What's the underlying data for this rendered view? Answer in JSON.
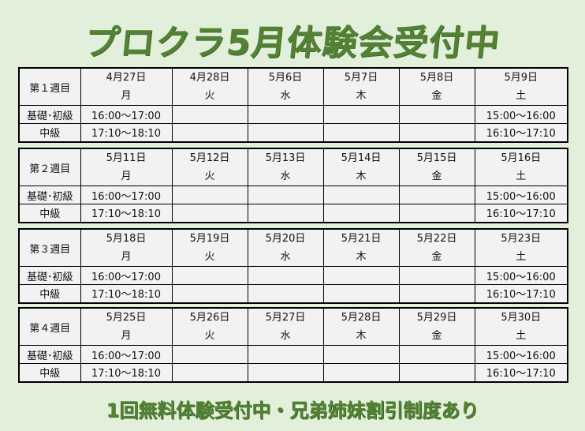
{
  "title": "プロクラ5月体験会受付中",
  "footer": "1回無料体験受付中・兄弟姉妹割引制度あり",
  "colors": {
    "background": "#e2efda",
    "accent": "#548235",
    "cell": "#f2f2f2"
  },
  "row_labels": {
    "basic": "基礎･初級",
    "intermediate": "中級"
  },
  "weekdays": [
    "月",
    "火",
    "水",
    "木",
    "金",
    "土"
  ],
  "weeks": [
    {
      "label": "第１週目",
      "dates": [
        "4月27日",
        "4月28日",
        "5月6日",
        "5月7日",
        "5月8日",
        "5月9日"
      ],
      "basic": [
        "16:00～17:00",
        "",
        "",
        "",
        "",
        "15:00～16:00"
      ],
      "intermediate": [
        "17:10～18:10",
        "",
        "",
        "",
        "",
        "16:10～17:10"
      ]
    },
    {
      "label": "第２週目",
      "dates": [
        "5月11日",
        "5月12日",
        "5月13日",
        "5月14日",
        "5月15日",
        "5月16日"
      ],
      "basic": [
        "16:00～17:00",
        "",
        "",
        "",
        "",
        "15:00～16:00"
      ],
      "intermediate": [
        "17:10～18:10",
        "",
        "",
        "",
        "",
        "16:10～17:10"
      ]
    },
    {
      "label": "第３週目",
      "dates": [
        "5月18日",
        "5月19日",
        "5月20日",
        "5月21日",
        "5月22日",
        "5月23日"
      ],
      "basic": [
        "16:00～17:00",
        "",
        "",
        "",
        "",
        "15:00～16:00"
      ],
      "intermediate": [
        "17:10～18:10",
        "",
        "",
        "",
        "",
        "16:10～17:10"
      ]
    },
    {
      "label": "第４週目",
      "dates": [
        "5月25日",
        "5月26日",
        "5月27日",
        "5月28日",
        "5月29日",
        "5月30日"
      ],
      "basic": [
        "16:00～17:00",
        "",
        "",
        "",
        "",
        "15:00～16:00"
      ],
      "intermediate": [
        "17:10～18:10",
        "",
        "",
        "",
        "",
        "16:10～17:10"
      ]
    }
  ]
}
